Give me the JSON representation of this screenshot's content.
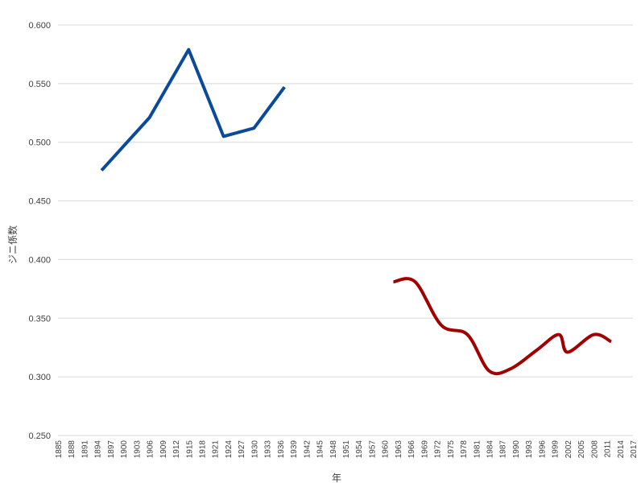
{
  "chart_data": {
    "type": "line",
    "xlabel": "年",
    "ylabel": "ジニ係数",
    "ylim": [
      0.25,
      0.6
    ],
    "y_ticks": [
      "0.600",
      "0.550",
      "0.500",
      "0.450",
      "0.400",
      "0.350",
      "0.300",
      "0.250"
    ],
    "y_tick_values": [
      0.6,
      0.55,
      0.5,
      0.45,
      0.4,
      0.35,
      0.3,
      0.25
    ],
    "x_range": [
      1885,
      2017
    ],
    "x_ticks": [
      "1885",
      "1888",
      "1891",
      "1894",
      "1897",
      "1900",
      "1903",
      "1906",
      "1909",
      "1912",
      "1915",
      "1918",
      "1921",
      "1924",
      "1927",
      "1930",
      "1933",
      "1936",
      "1939",
      "1942",
      "1945",
      "1948",
      "1951",
      "1954",
      "1957",
      "1960",
      "1963",
      "1966",
      "1969",
      "1972",
      "1975",
      "1978",
      "1981",
      "1984",
      "1987",
      "1990",
      "1993",
      "1996",
      "1999",
      "2002",
      "2005",
      "2008",
      "2011",
      "2014",
      "2017"
    ],
    "grid": true,
    "legend": "none",
    "series": [
      {
        "color": "#0b4a9a",
        "smooth": false,
        "points": [
          [
            1895,
            0.476
          ],
          [
            1906,
            0.521
          ],
          [
            1915,
            0.579
          ],
          [
            1923,
            0.505
          ],
          [
            1930,
            0.512
          ],
          [
            1937,
            0.547
          ]
        ]
      },
      {
        "color": "#a00000",
        "smooth": true,
        "points": [
          [
            1962,
            0.381
          ],
          [
            1967,
            0.381
          ],
          [
            1973,
            0.344
          ],
          [
            1979,
            0.336
          ],
          [
            1984,
            0.305
          ],
          [
            1989,
            0.307
          ],
          [
            1995,
            0.323
          ],
          [
            2000,
            0.336
          ],
          [
            2002,
            0.321
          ],
          [
            2008,
            0.336
          ],
          [
            2012,
            0.33
          ]
        ]
      }
    ]
  }
}
